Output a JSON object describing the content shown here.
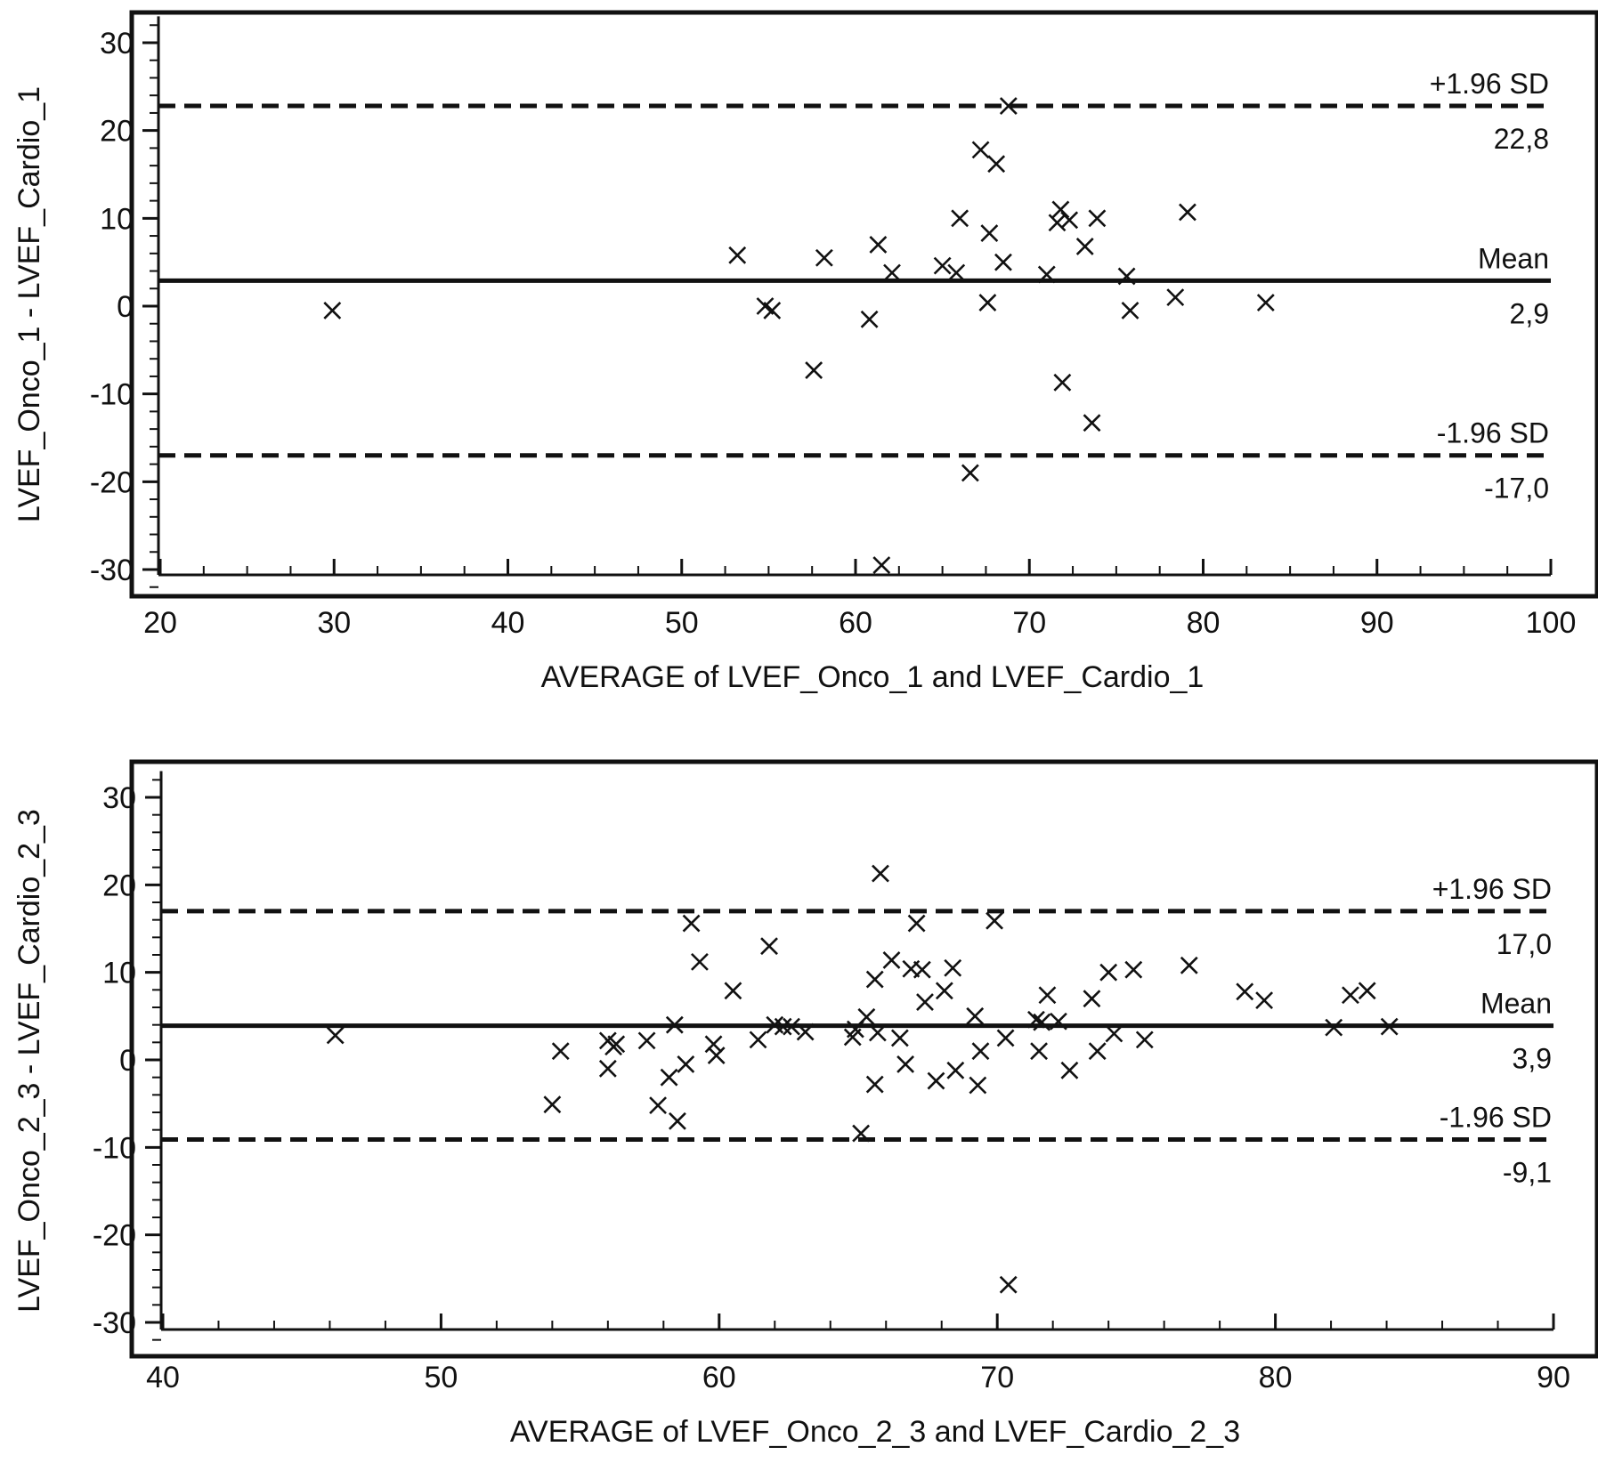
{
  "chart_data": [
    {
      "type": "scatter",
      "subtype": "bland-altman",
      "xlabel": "AVERAGE of LVEF_Onco_1 and LVEF_Cardio_1",
      "ylabel": "LVEF_Onco_1 - LVEF_Cardio_1",
      "xlim": [
        20,
        100
      ],
      "ylim": [
        -33,
        33
      ],
      "xticks": [
        20,
        30,
        40,
        50,
        60,
        70,
        80,
        90,
        100
      ],
      "yticks": [
        -30,
        -20,
        -10,
        0,
        10,
        20,
        30
      ],
      "grid": false,
      "marker": "x",
      "color": "#111111",
      "reference_lines": [
        {
          "name": "+1.96 SD",
          "label": "+1.96 SD",
          "value_label": "22,8",
          "y": 22.8,
          "style": "dashed"
        },
        {
          "name": "Mean",
          "label": "Mean",
          "value_label": "2,9",
          "y": 2.9,
          "style": "solid"
        },
        {
          "name": "-1.96 SD",
          "label": "-1.96 SD",
          "value_label": "-17,0",
          "y": -17.0,
          "style": "dashed"
        }
      ],
      "points": [
        [
          29.9,
          -0.5
        ],
        [
          53.2,
          5.8
        ],
        [
          54.8,
          0.0
        ],
        [
          55.2,
          -0.5
        ],
        [
          57.6,
          -7.3
        ],
        [
          58.2,
          5.5
        ],
        [
          60.8,
          -1.5
        ],
        [
          61.3,
          7.0
        ],
        [
          61.5,
          -29.5
        ],
        [
          62.1,
          3.8
        ],
        [
          65.0,
          4.6
        ],
        [
          65.8,
          3.8
        ],
        [
          66.0,
          10.0
        ],
        [
          66.6,
          -19.0
        ],
        [
          67.2,
          17.8
        ],
        [
          67.6,
          0.4
        ],
        [
          67.7,
          8.3
        ],
        [
          68.1,
          16.2
        ],
        [
          68.5,
          5.0
        ],
        [
          68.8,
          22.8
        ],
        [
          71.0,
          3.6
        ],
        [
          71.6,
          9.5
        ],
        [
          71.8,
          11.0
        ],
        [
          71.9,
          -8.7
        ],
        [
          72.3,
          9.8
        ],
        [
          73.2,
          6.8
        ],
        [
          73.6,
          -13.3
        ],
        [
          73.9,
          10.0
        ],
        [
          75.6,
          3.4
        ],
        [
          75.8,
          -0.5
        ],
        [
          78.4,
          1.0
        ],
        [
          79.1,
          10.7
        ],
        [
          83.6,
          0.4
        ]
      ]
    },
    {
      "type": "scatter",
      "subtype": "bland-altman",
      "xlabel": "AVERAGE of LVEF_Onco_2_3 and LVEF_Cardio_2_3",
      "ylabel": "LVEF_Onco_2_3 - LVEF_Cardio_2_3",
      "xlim": [
        40,
        90
      ],
      "ylim": [
        -33,
        33
      ],
      "xticks": [
        40,
        50,
        60,
        70,
        80,
        90
      ],
      "yticks": [
        -30,
        -20,
        -10,
        0,
        10,
        20,
        30
      ],
      "grid": false,
      "marker": "x",
      "color": "#111111",
      "reference_lines": [
        {
          "name": "+1.96 SD",
          "label": "+1.96 SD",
          "value_label": "17,0",
          "y": 17.0,
          "style": "dashed"
        },
        {
          "name": "Mean",
          "label": "Mean",
          "value_label": "3,9",
          "y": 3.9,
          "style": "solid"
        },
        {
          "name": "-1.96 SD",
          "label": "-1.96 SD",
          "value_label": "-9,1",
          "y": -9.1,
          "style": "dashed"
        }
      ],
      "points": [
        [
          46.2,
          2.8
        ],
        [
          54.0,
          -5.1
        ],
        [
          54.3,
          1.0
        ],
        [
          56.0,
          2.2
        ],
        [
          56.0,
          -1.0
        ],
        [
          56.2,
          1.5
        ],
        [
          56.3,
          1.8
        ],
        [
          57.4,
          2.2
        ],
        [
          57.8,
          -5.2
        ],
        [
          58.2,
          -2.0
        ],
        [
          58.4,
          4.0
        ],
        [
          58.5,
          -7.0
        ],
        [
          58.8,
          -0.5
        ],
        [
          59.0,
          15.6
        ],
        [
          59.3,
          11.2
        ],
        [
          59.8,
          1.8
        ],
        [
          59.9,
          0.5
        ],
        [
          60.5,
          7.9
        ],
        [
          61.4,
          2.3
        ],
        [
          61.8,
          13.0
        ],
        [
          62.0,
          4.0
        ],
        [
          62.3,
          3.8
        ],
        [
          62.6,
          3.8
        ],
        [
          63.1,
          3.2
        ],
        [
          64.8,
          2.6
        ],
        [
          64.9,
          3.5
        ],
        [
          65.1,
          -8.4
        ],
        [
          65.3,
          4.9
        ],
        [
          65.6,
          9.2
        ],
        [
          65.6,
          -2.8
        ],
        [
          65.7,
          3.1
        ],
        [
          65.8,
          21.3
        ],
        [
          66.2,
          11.4
        ],
        [
          66.5,
          2.5
        ],
        [
          66.7,
          -0.5
        ],
        [
          66.9,
          10.4
        ],
        [
          67.1,
          15.6
        ],
        [
          67.3,
          10.3
        ],
        [
          67.4,
          6.6
        ],
        [
          67.8,
          -2.4
        ],
        [
          68.1,
          7.9
        ],
        [
          68.4,
          10.5
        ],
        [
          68.5,
          -1.2
        ],
        [
          69.2,
          5.0
        ],
        [
          69.3,
          -2.9
        ],
        [
          69.4,
          1.0
        ],
        [
          69.9,
          15.9
        ],
        [
          70.3,
          2.5
        ],
        [
          70.4,
          -25.7
        ],
        [
          71.4,
          4.6
        ],
        [
          71.5,
          1.0
        ],
        [
          71.6,
          4.3
        ],
        [
          71.8,
          7.4
        ],
        [
          72.2,
          4.4
        ],
        [
          72.6,
          -1.2
        ],
        [
          73.4,
          7.0
        ],
        [
          73.6,
          1.0
        ],
        [
          74.0,
          10.0
        ],
        [
          74.2,
          3.0
        ],
        [
          74.9,
          10.3
        ],
        [
          75.3,
          2.3
        ],
        [
          76.9,
          10.8
        ],
        [
          78.9,
          7.8
        ],
        [
          79.6,
          6.8
        ],
        [
          82.1,
          3.7
        ],
        [
          82.7,
          7.4
        ],
        [
          83.3,
          7.9
        ],
        [
          84.1,
          3.8
        ]
      ]
    }
  ]
}
